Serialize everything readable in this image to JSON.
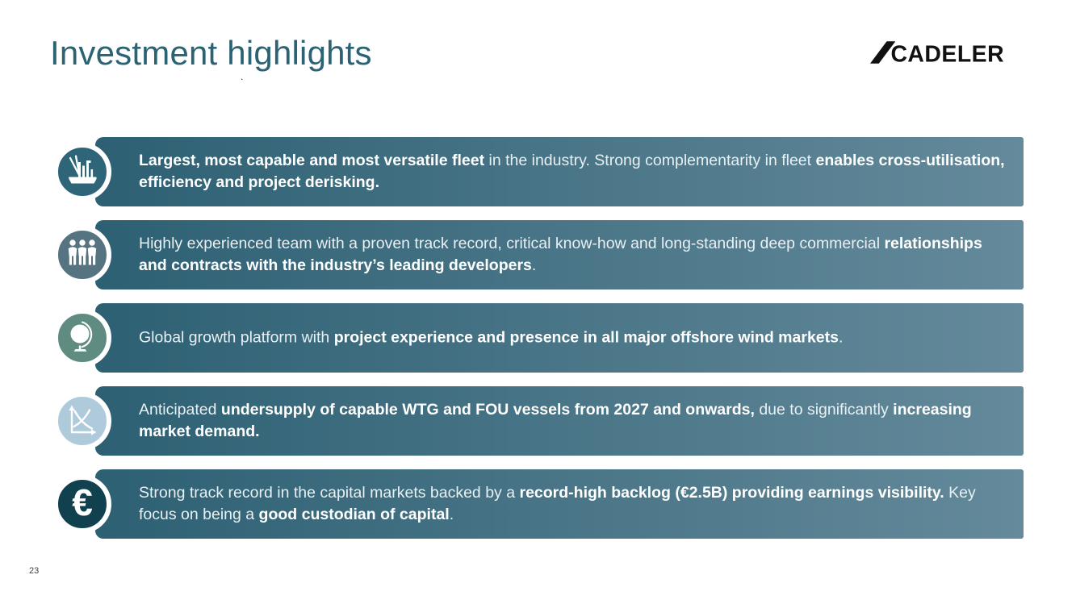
{
  "slide": {
    "title": "Investment highlights",
    "stray_dot": ".",
    "logo_text": "CADELER",
    "page_number": "23"
  },
  "colors": {
    "title": "#2b6274",
    "banner_gradient_start": "#2d6073",
    "banner_gradient_end": "#648a9b",
    "text_regular": "#e9f0f4",
    "text_bold": "#ffffff",
    "logo": "#111111",
    "icon_fill": "#ffffff"
  },
  "rows": [
    {
      "icon": "jackup-vessel-icon",
      "circle_color": "#2e6578",
      "segments": [
        {
          "text": "Largest, most capable and most versatile fleet",
          "bold": true
        },
        {
          "text": " in the industry. Strong complementarity in fleet ",
          "bold": false
        },
        {
          "text": "enables cross-utilisation, efficiency and project derisking.",
          "bold": true
        }
      ]
    },
    {
      "icon": "team-icon",
      "circle_color": "#567381",
      "segments": [
        {
          "text": "Highly experienced team with a proven track record, critical know-how and long-standing deep commercial ",
          "bold": false
        },
        {
          "text": "relationships and contracts with the industry’s leading developers",
          "bold": true
        },
        {
          "text": ".",
          "bold": false
        }
      ]
    },
    {
      "icon": "globe-icon",
      "circle_color": "#5f8b80",
      "segments": [
        {
          "text": "Global growth platform with ",
          "bold": false
        },
        {
          "text": "project experience and presence in all major offshore wind markets",
          "bold": true
        },
        {
          "text": ".",
          "bold": false
        }
      ]
    },
    {
      "icon": "supply-demand-chart-icon",
      "circle_color": "#aecadb",
      "segments": [
        {
          "text": "Anticipated ",
          "bold": false
        },
        {
          "text": "undersupply of capable WTG and FOU vessels from 2027 and onwards,",
          "bold": true
        },
        {
          "text": " due to significantly ",
          "bold": false
        },
        {
          "text": "increasing market demand.",
          "bold": true
        }
      ]
    },
    {
      "icon": "euro-icon",
      "circle_color": "#11404f",
      "segments": [
        {
          "text": "Strong track record in the capital markets backed by a ",
          "bold": false
        },
        {
          "text": "record-high backlog (€2.5B) providing earnings visibility.",
          "bold": true
        },
        {
          "text": " Key focus on being a ",
          "bold": false
        },
        {
          "text": "good custodian of capital",
          "bold": true
        },
        {
          "text": ".",
          "bold": false
        }
      ]
    }
  ]
}
